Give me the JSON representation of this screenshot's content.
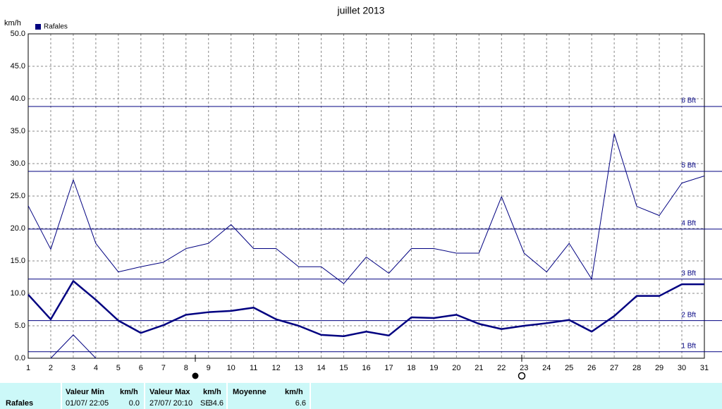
{
  "chart_data": {
    "type": "line",
    "title": "juillet 2013",
    "y_label": "km/h",
    "categories": [
      "1",
      "2",
      "3",
      "4",
      "5",
      "6",
      "7",
      "8",
      "9",
      "10",
      "11",
      "12",
      "13",
      "14",
      "15",
      "16",
      "17",
      "18",
      "19",
      "20",
      "21",
      "22",
      "23",
      "24",
      "25",
      "26",
      "27",
      "28",
      "29",
      "30",
      "31"
    ],
    "series": [
      {
        "name": "Rafales",
        "color": "#000080",
        "style": "thick",
        "values": [
          9.8,
          6.0,
          11.9,
          9.0,
          5.8,
          3.9,
          5.1,
          6.7,
          7.1,
          7.3,
          7.8,
          6.0,
          5.0,
          3.6,
          3.4,
          4.1,
          3.5,
          6.3,
          6.2,
          6.7,
          5.3,
          4.5,
          5.0,
          5.4,
          5.9,
          4.1,
          6.5,
          9.6,
          9.6,
          11.4,
          11.4
        ]
      },
      {
        "color": "#000080",
        "style": "thin",
        "values": [
          23.5,
          16.8,
          27.5,
          17.7,
          13.3,
          14.1,
          14.8,
          16.9,
          17.7,
          20.6,
          16.9,
          16.9,
          14.1,
          14.1,
          11.5,
          15.6,
          13.1,
          16.9,
          16.9,
          16.2,
          16.2,
          24.9,
          16.2,
          13.3,
          17.7,
          12.2,
          34.6,
          23.4,
          22.0,
          27.0,
          28.1
        ]
      },
      {
        "color": "#000080",
        "style": "thin",
        "values": [
          null,
          0,
          3.6,
          0,
          null,
          null,
          null,
          null,
          null,
          null,
          null,
          null,
          null,
          null,
          null,
          null,
          null,
          null,
          null,
          null,
          null,
          null,
          null,
          null,
          null,
          null,
          null,
          null,
          null,
          null,
          null
        ]
      }
    ],
    "ylim": [
      0,
      50
    ],
    "yticks": [
      {
        "value": 0,
        "label": "0.0"
      },
      {
        "value": 5,
        "label": "5.0"
      },
      {
        "value": 10,
        "label": "10.0"
      },
      {
        "value": 15,
        "label": "15.0"
      },
      {
        "value": 20,
        "label": "20.0"
      },
      {
        "value": 25,
        "label": "25.0"
      },
      {
        "value": 30,
        "label": "30.0"
      },
      {
        "value": 35,
        "label": "35.0"
      },
      {
        "value": 40,
        "label": "40.0"
      },
      {
        "value": 45,
        "label": "45.0"
      },
      {
        "value": 50,
        "label": "50.0"
      }
    ],
    "reference_lines": [
      {
        "value": 1,
        "label": "1 Bft"
      },
      {
        "value": 5.8,
        "label": "2 Bft"
      },
      {
        "value": 12.2,
        "label": "3 Bft"
      },
      {
        "value": 19.9,
        "label": "4 Bft"
      },
      {
        "value": 28.8,
        "label": "5 Bft"
      },
      {
        "value": 38.8,
        "label": "6 Bft"
      }
    ],
    "grid": true,
    "legend": "top-left"
  },
  "stats": {
    "label": "Rafales",
    "min": {
      "header": "Valeur Min",
      "unit": "km/h",
      "date": "01/07/ 22:05",
      "value": "0.0"
    },
    "max": {
      "header": "Valeur Max",
      "unit": "km/h",
      "date": "27/07/ 20:10",
      "direction": "SE",
      "value": "34.6"
    },
    "mean": {
      "header": "Moyenne",
      "unit": "km/h",
      "value": "6.6"
    }
  }
}
